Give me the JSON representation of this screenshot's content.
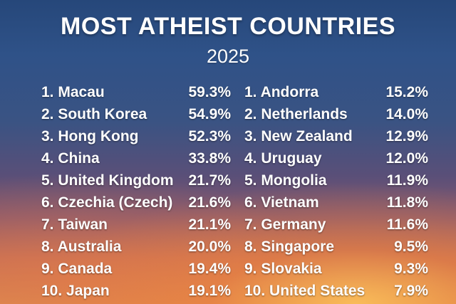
{
  "title": "MOST ATHEIST COUNTRIES",
  "subtitle": "2025",
  "left_list": [
    {
      "name": "1. Macau",
      "pct": "59.3%"
    },
    {
      "name": "2. South Korea",
      "pct": "54.9%"
    },
    {
      "name": "3. Hong Kong",
      "pct": "52.3%"
    },
    {
      "name": "4. China",
      "pct": "33.8%"
    },
    {
      "name": "5. United Kingdom",
      "pct": "21.7%"
    },
    {
      "name": "6. Czechia (Czech)",
      "pct": "21.6%"
    },
    {
      "name": "7. Taiwan",
      "pct": "21.1%"
    },
    {
      "name": "8. Australia",
      "pct": "20.0%"
    },
    {
      "name": "9. Canada",
      "pct": "19.4%"
    },
    {
      "name": "10. Japan",
      "pct": "19.1%"
    }
  ],
  "right_list": [
    {
      "name": "1. Andorra",
      "pct": "15.2%"
    },
    {
      "name": "2. Netherlands",
      "pct": "14.0%"
    },
    {
      "name": "3. New Zealand",
      "pct": "12.9%"
    },
    {
      "name": "4. Uruguay",
      "pct": "12.0%"
    },
    {
      "name": "5. Mongolia",
      "pct": "11.9%"
    },
    {
      "name": "6. Vietnam",
      "pct": "11.8%"
    },
    {
      "name": "7. Germany",
      "pct": "11.6%"
    },
    {
      "name": "8. Singapore",
      "pct": "9.5%"
    },
    {
      "name": "9. Slovakia",
      "pct": "9.3%"
    },
    {
      "name": "10. United States",
      "pct": "7.9%"
    }
  ]
}
